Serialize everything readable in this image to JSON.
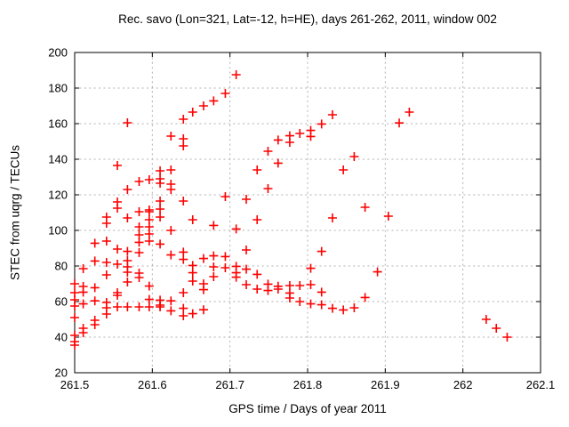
{
  "page": {
    "background": "#ffffff"
  },
  "chart_data": {
    "type": "scatter",
    "title": "Rec. savo (Lon=321, Lat=-12, h=HE), days 261-262, 2011, window 002",
    "xlabel": "GPS time / Days of year 2011",
    "ylabel": "STEC from uqrg / TECUs",
    "xlim": [
      261.5,
      262.1
    ],
    "ylim": [
      20,
      200
    ],
    "xticks": [
      261.5,
      261.6,
      261.7,
      261.8,
      261.9,
      262,
      262.1
    ],
    "xtick_labels": [
      "261.5",
      "261.6",
      "261.7",
      "261.8",
      "261.9",
      "262",
      "262.1"
    ],
    "yticks": [
      20,
      40,
      60,
      80,
      100,
      120,
      140,
      160,
      180,
      200
    ],
    "ytick_labels": [
      "20",
      "40",
      "60",
      "80",
      "100",
      "120",
      "140",
      "160",
      "180",
      "200"
    ],
    "grid": true,
    "legend_position": "none",
    "marker": {
      "shape": "plus",
      "color": "#ff0000",
      "size": 5,
      "stroke_width": 1.6
    },
    "grid_color": "#b0b0b0",
    "axis_color": "#000000",
    "series": [
      {
        "name": "STEC",
        "points": [
          [
            261.5,
            70
          ],
          [
            261.5,
            65
          ],
          [
            261.5,
            61
          ],
          [
            261.5,
            57.5
          ],
          [
            261.5,
            51
          ],
          [
            261.5,
            41
          ],
          [
            261.5,
            37.5
          ],
          [
            261.5,
            35.5
          ],
          [
            261.511,
            78.5
          ],
          [
            261.511,
            68.5
          ],
          [
            261.511,
            65.3
          ],
          [
            261.511,
            58.7
          ],
          [
            261.511,
            45
          ],
          [
            261.511,
            42.5
          ],
          [
            261.526,
            92.8
          ],
          [
            261.526,
            82.8
          ],
          [
            261.526,
            67.8
          ],
          [
            261.526,
            60.4
          ],
          [
            261.526,
            49.5
          ],
          [
            261.526,
            47
          ],
          [
            261.541,
            107.5
          ],
          [
            261.541,
            104
          ],
          [
            261.541,
            94
          ],
          [
            261.541,
            82
          ],
          [
            261.541,
            75
          ],
          [
            261.541,
            59.5
          ],
          [
            261.541,
            56.5
          ],
          [
            261.541,
            53
          ],
          [
            261.555,
            136.5
          ],
          [
            261.555,
            116
          ],
          [
            261.555,
            112.5
          ],
          [
            261.555,
            89.5
          ],
          [
            261.555,
            81
          ],
          [
            261.555,
            65
          ],
          [
            261.555,
            63.5
          ],
          [
            261.555,
            57
          ],
          [
            261.568,
            160.5
          ],
          [
            261.568,
            123
          ],
          [
            261.568,
            107
          ],
          [
            261.568,
            88.2
          ],
          [
            261.568,
            83
          ],
          [
            261.568,
            79.5
          ],
          [
            261.568,
            76.5
          ],
          [
            261.568,
            71
          ],
          [
            261.568,
            57
          ],
          [
            261.583,
            127.5
          ],
          [
            261.583,
            110.5
          ],
          [
            261.583,
            102
          ],
          [
            261.583,
            97.5
          ],
          [
            261.583,
            93.3
          ],
          [
            261.583,
            87.5
          ],
          [
            261.583,
            76
          ],
          [
            261.583,
            73.5
          ],
          [
            261.583,
            57
          ],
          [
            261.596,
            128.5
          ],
          [
            261.596,
            111.5
          ],
          [
            261.596,
            110.5
          ],
          [
            261.596,
            106
          ],
          [
            261.596,
            102
          ],
          [
            261.596,
            98
          ],
          [
            261.596,
            94
          ],
          [
            261.596,
            68.7
          ],
          [
            261.596,
            61.2
          ],
          [
            261.596,
            57
          ],
          [
            261.61,
            133.5
          ],
          [
            261.61,
            129
          ],
          [
            261.61,
            126.5
          ],
          [
            261.61,
            116.5
          ],
          [
            261.61,
            112
          ],
          [
            261.61,
            107.5
          ],
          [
            261.61,
            92.3
          ],
          [
            261.61,
            60.8
          ],
          [
            261.61,
            58
          ],
          [
            261.61,
            57
          ],
          [
            261.624,
            153
          ],
          [
            261.624,
            134
          ],
          [
            261.624,
            126
          ],
          [
            261.624,
            123
          ],
          [
            261.624,
            100
          ],
          [
            261.624,
            86.2
          ],
          [
            261.624,
            60.4
          ],
          [
            261.624,
            54.8
          ],
          [
            261.64,
            162.5
          ],
          [
            261.64,
            151.5
          ],
          [
            261.64,
            147.5
          ],
          [
            261.64,
            116.5
          ],
          [
            261.64,
            87.8
          ],
          [
            261.64,
            83.7
          ],
          [
            261.64,
            65
          ],
          [
            261.64,
            56.2
          ],
          [
            261.64,
            52
          ],
          [
            261.652,
            166.5
          ],
          [
            261.652,
            106
          ],
          [
            261.652,
            80.3
          ],
          [
            261.652,
            76.2
          ],
          [
            261.652,
            71.5
          ],
          [
            261.652,
            53.2
          ],
          [
            261.666,
            170
          ],
          [
            261.666,
            84.2
          ],
          [
            261.666,
            70
          ],
          [
            261.666,
            66.7
          ],
          [
            261.666,
            55.4
          ],
          [
            261.679,
            172.8
          ],
          [
            261.679,
            102.8
          ],
          [
            261.679,
            85.7
          ],
          [
            261.679,
            79.5
          ],
          [
            261.679,
            74
          ],
          [
            261.694,
            177
          ],
          [
            261.694,
            119
          ],
          [
            261.694,
            85.3
          ],
          [
            261.694,
            79
          ],
          [
            261.708,
            187.5
          ],
          [
            261.708,
            100.8
          ],
          [
            261.708,
            79.8
          ],
          [
            261.708,
            76.2
          ],
          [
            261.708,
            73.7
          ],
          [
            261.721,
            117.5
          ],
          [
            261.721,
            89
          ],
          [
            261.721,
            78.2
          ],
          [
            261.721,
            69.5
          ],
          [
            261.735,
            134
          ],
          [
            261.735,
            106
          ],
          [
            261.735,
            75.3
          ],
          [
            261.735,
            67
          ],
          [
            261.749,
            144.5
          ],
          [
            261.749,
            123.5
          ],
          [
            261.749,
            69.8
          ],
          [
            261.749,
            66.2
          ],
          [
            261.762,
            150.8
          ],
          [
            261.762,
            137.8
          ],
          [
            261.762,
            68.6
          ],
          [
            261.762,
            67
          ],
          [
            261.777,
            153.2
          ],
          [
            261.777,
            149.5
          ],
          [
            261.777,
            69
          ],
          [
            261.777,
            64.8
          ],
          [
            261.777,
            62
          ],
          [
            261.79,
            154.5
          ],
          [
            261.79,
            69
          ],
          [
            261.79,
            60
          ],
          [
            261.804,
            156.2
          ],
          [
            261.804,
            152.8
          ],
          [
            261.804,
            78.7
          ],
          [
            261.804,
            69.5
          ],
          [
            261.804,
            58.7
          ],
          [
            261.818,
            159.8
          ],
          [
            261.818,
            88.2
          ],
          [
            261.818,
            65.3
          ],
          [
            261.818,
            58.2
          ],
          [
            261.832,
            165
          ],
          [
            261.832,
            107
          ],
          [
            261.832,
            56.2
          ],
          [
            261.846,
            134
          ],
          [
            261.846,
            55.3
          ],
          [
            261.86,
            141.5
          ],
          [
            261.86,
            56.5
          ],
          [
            261.874,
            113
          ],
          [
            261.874,
            62.3
          ],
          [
            261.89,
            76.7
          ],
          [
            261.904,
            108
          ],
          [
            261.918,
            160.4
          ],
          [
            261.931,
            166.5
          ],
          [
            262.03,
            50
          ],
          [
            262.043,
            45
          ],
          [
            262.057,
            40
          ]
        ]
      }
    ]
  }
}
